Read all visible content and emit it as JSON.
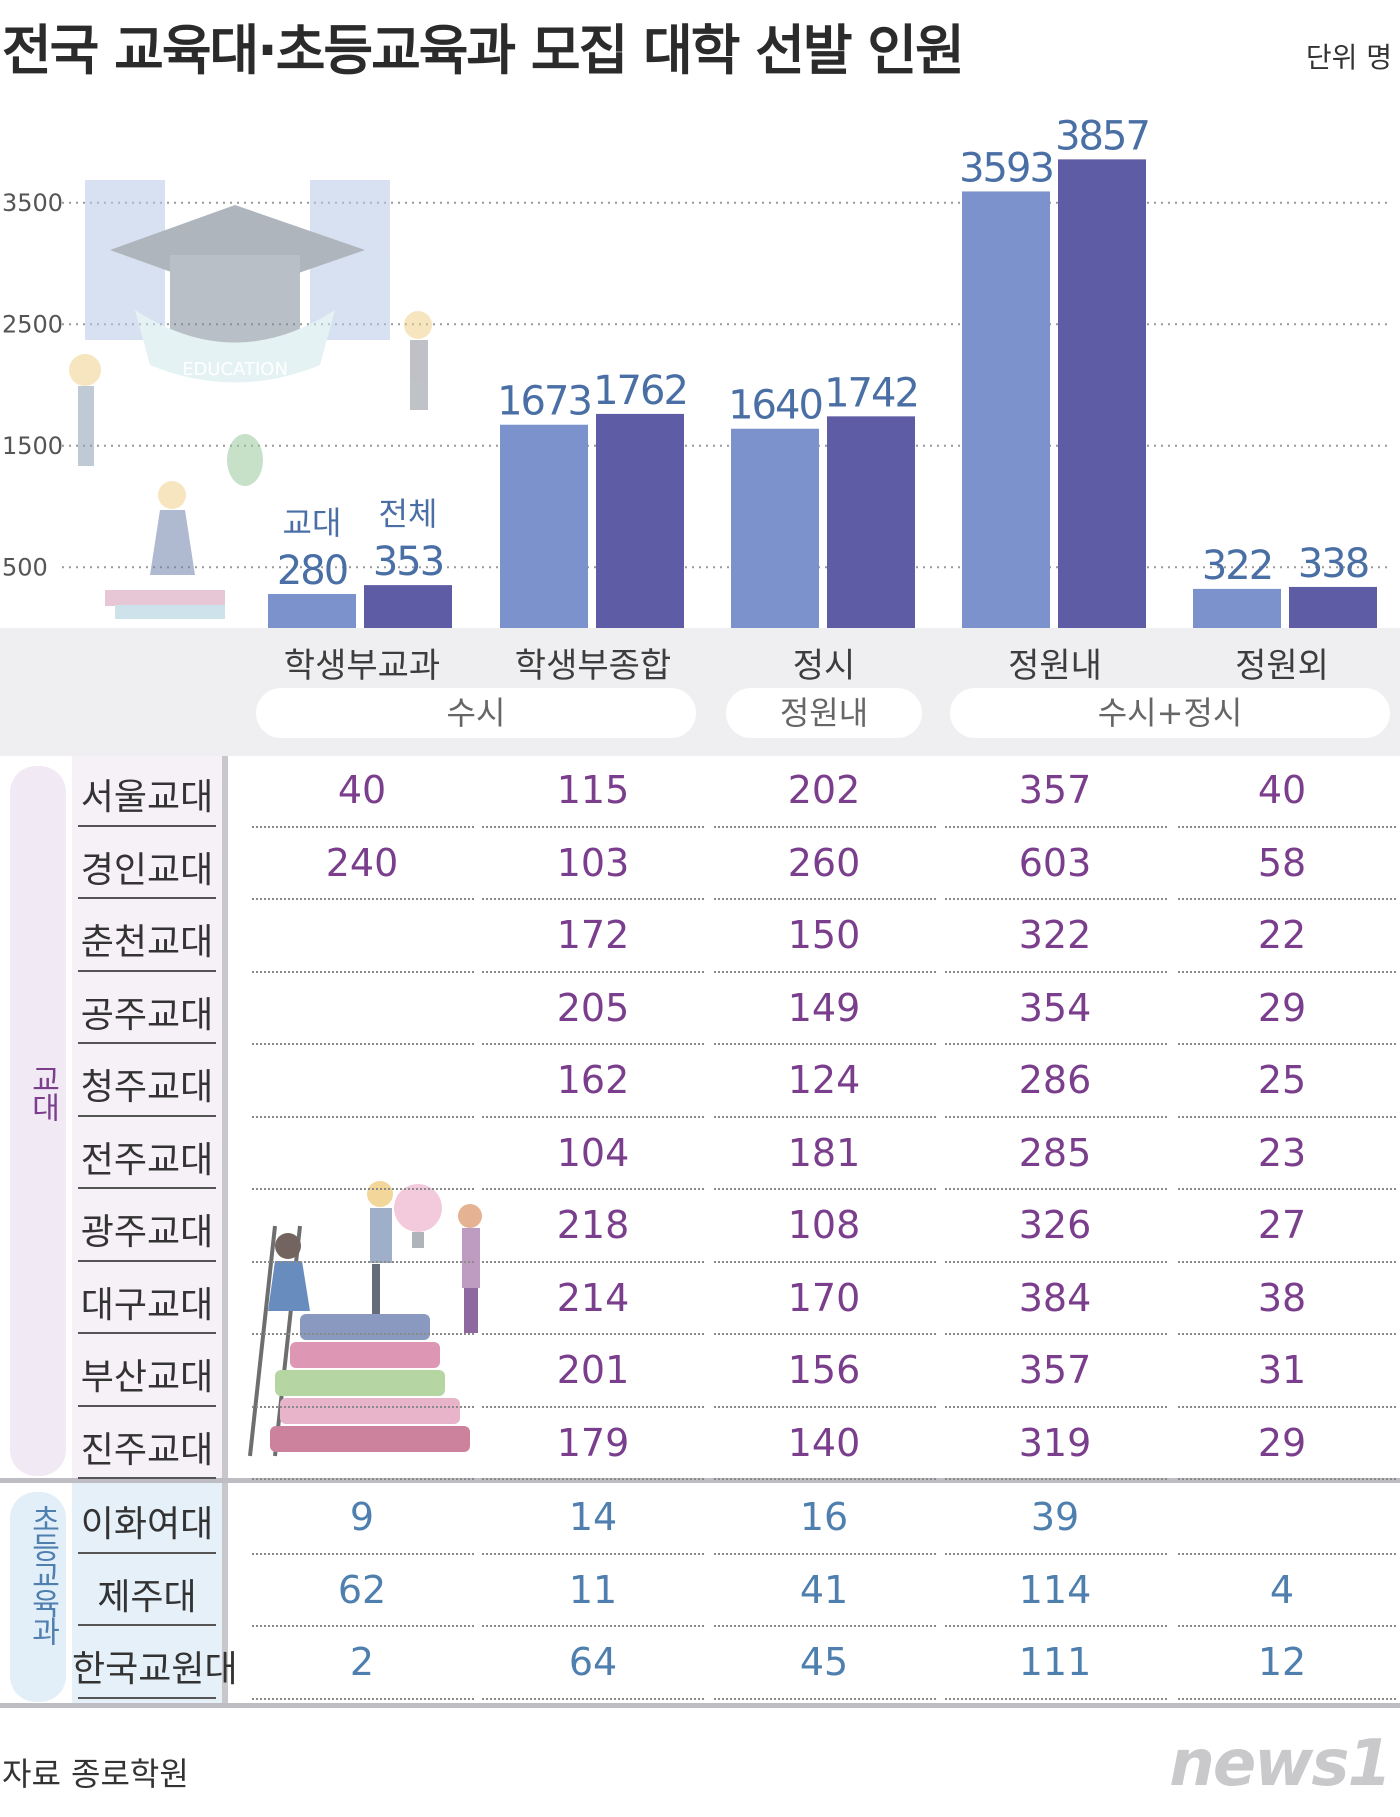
{
  "title": "전국 교육대·초등교육과 모집 대학 선발 인원",
  "unit": "단위 명",
  "source": "자료 종로학원",
  "logo": "news1",
  "colors": {
    "gyodae": "#7b92cc",
    "total": "#5e5ca5",
    "gyo_text": "#7a3e8c",
    "cho_text": "#4e7fae",
    "gyo_tab": "#f1eaf4",
    "cho_tab": "#e2eef8"
  },
  "chart_data": {
    "type": "bar",
    "categories": [
      "학생부교과",
      "학생부종합",
      "정시",
      "정원내",
      "정원외"
    ],
    "series": [
      {
        "name": "교대",
        "values": [
          280,
          1673,
          1640,
          3593,
          322
        ]
      },
      {
        "name": "전체",
        "values": [
          353,
          1762,
          1742,
          3857,
          338
        ]
      }
    ],
    "yticks": [
      500,
      1500,
      2500,
      3500
    ],
    "ylim": [
      0,
      4000
    ],
    "grid": true,
    "legend": "inline above first bar pair"
  },
  "groups": [
    {
      "label": "수시"
    },
    {
      "label": "정원내"
    },
    {
      "label": "수시+정시"
    }
  ],
  "table": {
    "gyodae_label": "교대",
    "cho_label": "초등교육과",
    "gyodae_rows": [
      {
        "name": "서울교대",
        "values": [
          "40",
          "115",
          "202",
          "357",
          "40"
        ]
      },
      {
        "name": "경인교대",
        "values": [
          "240",
          "103",
          "260",
          "603",
          "58"
        ]
      },
      {
        "name": "춘천교대",
        "values": [
          "",
          "172",
          "150",
          "322",
          "22"
        ]
      },
      {
        "name": "공주교대",
        "values": [
          "",
          "205",
          "149",
          "354",
          "29"
        ]
      },
      {
        "name": "청주교대",
        "values": [
          "",
          "162",
          "124",
          "286",
          "25"
        ]
      },
      {
        "name": "전주교대",
        "values": [
          "",
          "104",
          "181",
          "285",
          "23"
        ]
      },
      {
        "name": "광주교대",
        "values": [
          "",
          "218",
          "108",
          "326",
          "27"
        ]
      },
      {
        "name": "대구교대",
        "values": [
          "",
          "214",
          "170",
          "384",
          "38"
        ]
      },
      {
        "name": "부산교대",
        "values": [
          "",
          "201",
          "156",
          "357",
          "31"
        ]
      },
      {
        "name": "진주교대",
        "values": [
          "",
          "179",
          "140",
          "319",
          "29"
        ]
      }
    ],
    "cho_rows": [
      {
        "name": "이화여대",
        "values": [
          "9",
          "14",
          "16",
          "39",
          ""
        ]
      },
      {
        "name": "제주대",
        "values": [
          "62",
          "11",
          "41",
          "114",
          "4"
        ]
      },
      {
        "name": "한국교원대",
        "values": [
          "2",
          "64",
          "45",
          "111",
          "12"
        ]
      }
    ]
  }
}
